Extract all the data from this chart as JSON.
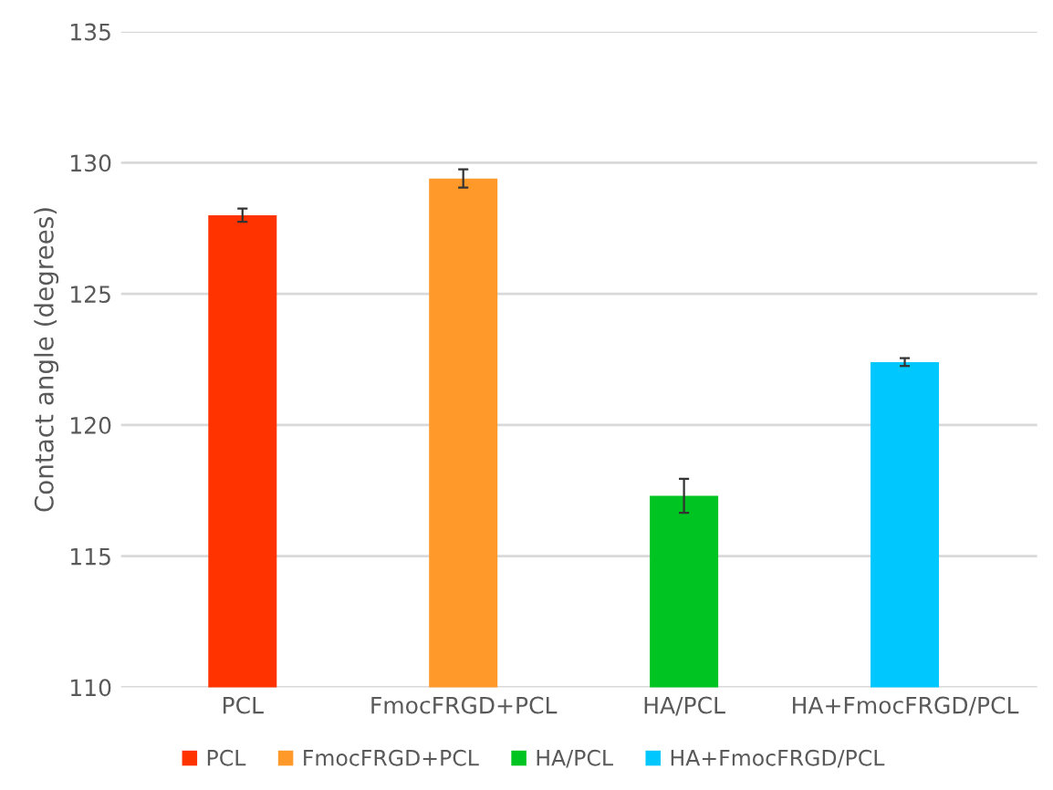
{
  "chart_data": {
    "type": "bar",
    "ylabel": "Contact angle (degrees)",
    "categories": [
      "PCL",
      "FmocFRGD+PCL",
      "HA/PCL",
      "HA+FmocFRGD/PCL"
    ],
    "series": [
      {
        "name": "PCL",
        "color": "#ff3300",
        "values": [
          128.0,
          null,
          null,
          null
        ],
        "errors": [
          0.25,
          null,
          null,
          null
        ]
      },
      {
        "name": "FmocFRGD+PCL",
        "color": "#ff9a2a",
        "values": [
          null,
          129.4,
          null,
          null
        ],
        "errors": [
          null,
          0.35,
          null,
          null
        ]
      },
      {
        "name": "HA/PCL",
        "color": "#00c421",
        "values": [
          null,
          null,
          117.3,
          null
        ],
        "errors": [
          null,
          null,
          0.65,
          null
        ]
      },
      {
        "name": "HA+FmocFRGD/PCL",
        "color": "#00c8ff",
        "values": [
          null,
          null,
          null,
          122.4
        ],
        "errors": [
          null,
          null,
          null,
          0.15
        ]
      }
    ],
    "ylim": [
      110,
      135
    ],
    "yticks": [
      110,
      115,
      120,
      125,
      130,
      135
    ],
    "grid": "y",
    "legend": "bottom"
  }
}
